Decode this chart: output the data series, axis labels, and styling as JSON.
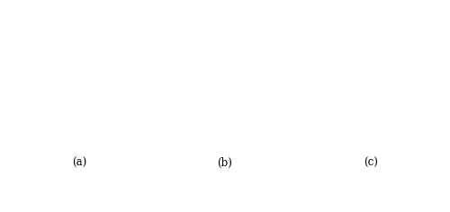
{
  "figsize": [
    5.0,
    2.36
  ],
  "dpi": 100,
  "bg_color": "#ffffff",
  "line_color": "#999999",
  "line_width": 0.55,
  "arrow_color": "#000000",
  "text_color": "#000000",
  "font_size": 7.5,
  "hex_R": 0.22,
  "panels": [
    {
      "label": "(a)",
      "type": "IJO"
    },
    {
      "label": "(b)",
      "type": "XY_left"
    },
    {
      "label": "(c)",
      "type": "XY_center"
    }
  ]
}
